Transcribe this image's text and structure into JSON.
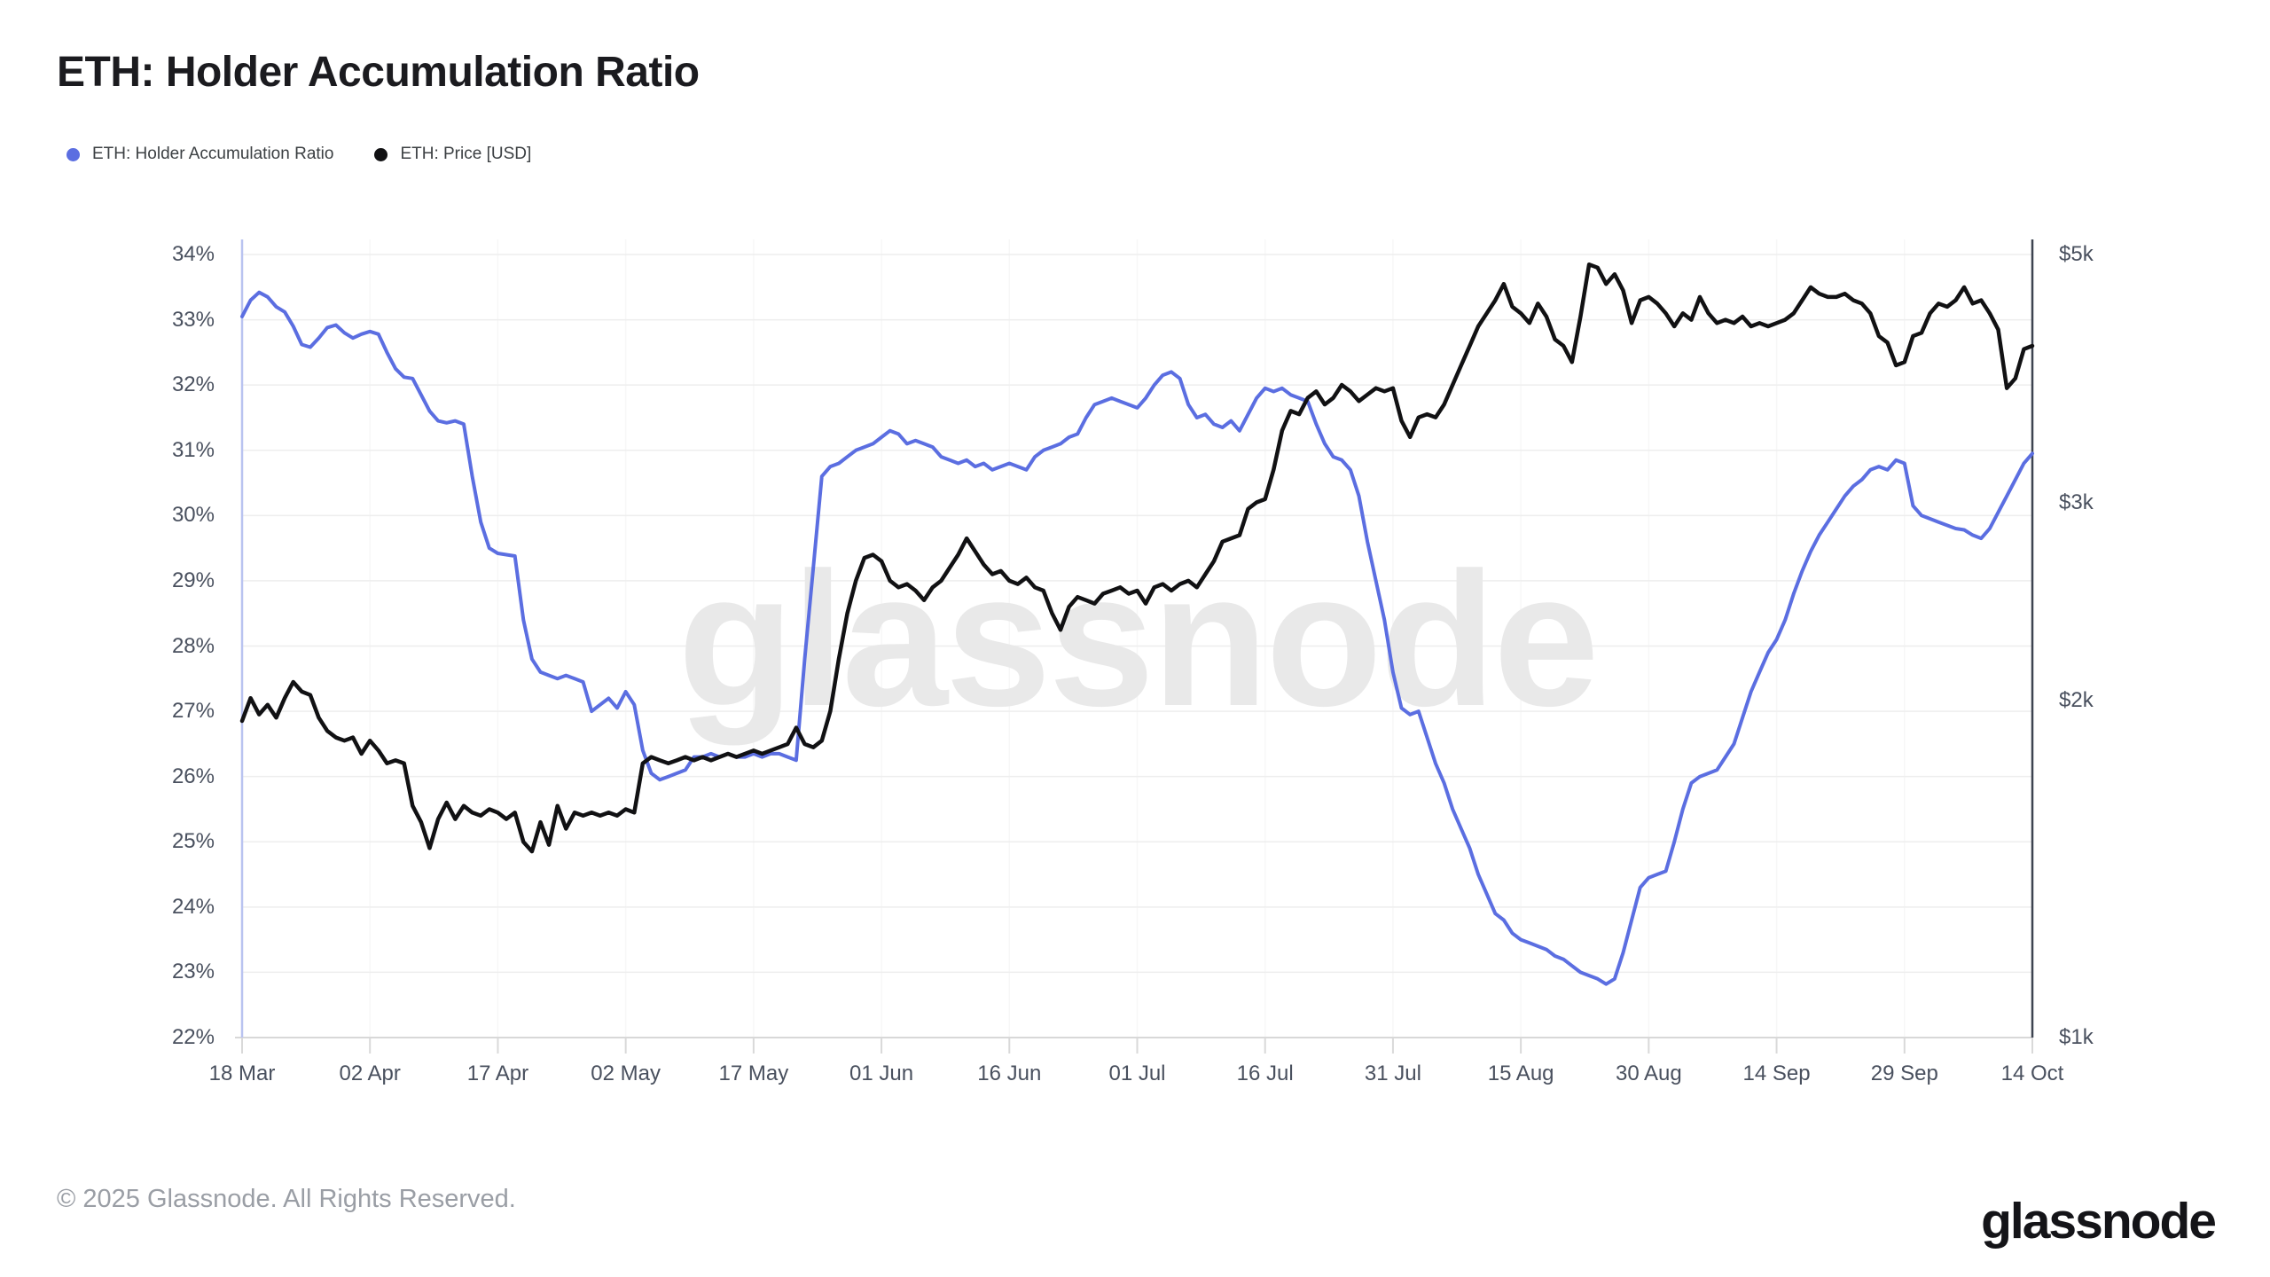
{
  "chart_data": {
    "type": "line",
    "title": "ETH: Holder Accumulation Ratio",
    "watermark": "glassnode",
    "grid": "horizontal",
    "legend_position": "top-left",
    "x_axis": {
      "tick_labels": [
        "18 Mar",
        "02 Apr",
        "17 Apr",
        "02 May",
        "17 May",
        "01 Jun",
        "16 Jun",
        "01 Jul",
        "16 Jul",
        "31 Jul",
        "15 Aug",
        "30 Aug",
        "14 Sep",
        "29 Sep",
        "14 Oct"
      ]
    },
    "left_axis": {
      "unit": "%",
      "min": 22,
      "max": 34,
      "tick_labels": [
        "34%",
        "33%",
        "32%",
        "31%",
        "30%",
        "29%",
        "28%",
        "27%",
        "26%",
        "25%",
        "24%",
        "23%",
        "22%"
      ],
      "axis_color": "#b9c3f0"
    },
    "right_axis": {
      "unit": "USD",
      "scale": "log",
      "min": 1000,
      "max": 5000,
      "tick_labels": [
        "$5k",
        "$3k",
        "$2k",
        "$1k"
      ],
      "tick_values": [
        5000,
        3000,
        2000,
        1000
      ],
      "axis_color": "#3d4350"
    },
    "series": [
      {
        "name": "ETH: Holder Accumulation Ratio",
        "color": "#5B6EE1",
        "axis": "left",
        "unit": "%",
        "values": [
          33.05,
          33.3,
          33.42,
          33.35,
          33.2,
          33.12,
          32.9,
          32.62,
          32.58,
          32.72,
          32.88,
          32.92,
          32.8,
          32.72,
          32.78,
          32.82,
          32.78,
          32.5,
          32.25,
          32.12,
          32.1,
          31.85,
          31.6,
          31.45,
          31.42,
          31.45,
          31.4,
          30.6,
          29.9,
          29.5,
          29.42,
          29.4,
          29.38,
          28.4,
          27.8,
          27.6,
          27.55,
          27.5,
          27.55,
          27.5,
          27.45,
          27.0,
          27.1,
          27.2,
          27.05,
          27.3,
          27.1,
          26.4,
          26.05,
          25.95,
          26.0,
          26.05,
          26.1,
          26.3,
          26.3,
          26.35,
          26.3,
          26.35,
          26.3,
          26.3,
          26.35,
          26.3,
          26.35,
          26.35,
          26.3,
          26.25,
          27.8,
          29.2,
          30.6,
          30.75,
          30.8,
          30.9,
          31.0,
          31.05,
          31.1,
          31.2,
          31.3,
          31.25,
          31.1,
          31.15,
          31.1,
          31.05,
          30.9,
          30.85,
          30.8,
          30.85,
          30.75,
          30.8,
          30.7,
          30.75,
          30.8,
          30.75,
          30.7,
          30.9,
          31.0,
          31.05,
          31.1,
          31.2,
          31.25,
          31.5,
          31.7,
          31.75,
          31.8,
          31.75,
          31.7,
          31.65,
          31.8,
          32.0,
          32.15,
          32.2,
          32.1,
          31.7,
          31.5,
          31.55,
          31.4,
          31.35,
          31.45,
          31.3,
          31.55,
          31.8,
          31.95,
          31.9,
          31.95,
          31.85,
          31.8,
          31.75,
          31.4,
          31.1,
          30.9,
          30.85,
          30.7,
          30.3,
          29.6,
          29.0,
          28.4,
          27.6,
          27.05,
          26.95,
          27.0,
          26.6,
          26.2,
          25.9,
          25.5,
          25.2,
          24.9,
          24.5,
          24.2,
          23.9,
          23.8,
          23.6,
          23.5,
          23.45,
          23.4,
          23.35,
          23.25,
          23.2,
          23.1,
          23.0,
          22.95,
          22.9,
          22.82,
          22.9,
          23.3,
          23.8,
          24.3,
          24.45,
          24.5,
          24.55,
          25.0,
          25.5,
          25.9,
          26.0,
          26.05,
          26.1,
          26.3,
          26.5,
          26.9,
          27.3,
          27.6,
          27.9,
          28.1,
          28.4,
          28.8,
          29.15,
          29.45,
          29.7,
          29.9,
          30.1,
          30.3,
          30.45,
          30.55,
          30.7,
          30.75,
          30.7,
          30.85,
          30.8,
          30.15,
          30.0,
          29.95,
          29.9,
          29.85,
          29.8,
          29.78,
          29.7,
          29.65,
          29.8,
          30.05,
          30.3,
          30.55,
          30.8,
          30.95
        ]
      },
      {
        "name": "ETH: Price [USD]",
        "color": "#111113",
        "axis": "right",
        "unit": "USD",
        "values": [
          1917,
          2009,
          1943,
          1982,
          1930,
          2009,
          2077,
          2036,
          2022,
          1930,
          1878,
          1853,
          1841,
          1853,
          1792,
          1841,
          1804,
          1757,
          1768,
          1757,
          1610,
          1557,
          1476,
          1567,
          1621,
          1567,
          1610,
          1588,
          1578,
          1599,
          1588,
          1567,
          1588,
          1495,
          1466,
          1557,
          1486,
          1610,
          1536,
          1588,
          1578,
          1588,
          1578,
          1588,
          1578,
          1599,
          1588,
          1757,
          1780,
          1768,
          1757,
          1768,
          1780,
          1768,
          1780,
          1768,
          1780,
          1792,
          1780,
          1792,
          1804,
          1792,
          1804,
          1816,
          1828,
          1891,
          1828,
          1816,
          1841,
          1956,
          2178,
          2392,
          2557,
          2680,
          2698,
          2662,
          2557,
          2523,
          2540,
          2506,
          2457,
          2523,
          2557,
          2627,
          2698,
          2790,
          2716,
          2644,
          2592,
          2609,
          2557,
          2540,
          2574,
          2523,
          2506,
          2392,
          2312,
          2424,
          2473,
          2457,
          2440,
          2490,
          2506,
          2523,
          2490,
          2506,
          2440,
          2523,
          2540,
          2506,
          2540,
          2557,
          2523,
          2592,
          2662,
          2771,
          2790,
          2808,
          2964,
          3004,
          3024,
          3213,
          3482,
          3625,
          3601,
          3724,
          3774,
          3674,
          3724,
          3825,
          3774,
          3699,
          3749,
          3799,
          3774,
          3799,
          3553,
          3436,
          3577,
          3601,
          3577,
          3674,
          3825,
          3981,
          4144,
          4314,
          4431,
          4551,
          4706,
          4491,
          4431,
          4343,
          4521,
          4401,
          4200,
          4144,
          4008,
          4401,
          4899,
          4867,
          4706,
          4802,
          4644,
          4343,
          4551,
          4582,
          4521,
          4431,
          4314,
          4431,
          4372,
          4582,
          4431,
          4343,
          4372,
          4343,
          4401,
          4314,
          4343,
          4314,
          4343,
          4372,
          4431,
          4551,
          4675,
          4613,
          4582,
          4582,
          4613,
          4551,
          4521,
          4431,
          4228,
          4172,
          3981,
          4008,
          4228,
          4257,
          4431,
          4521,
          4491,
          4551,
          4675,
          4521,
          4551,
          4431,
          4285,
          3799,
          3876,
          4116,
          4144
        ]
      }
    ],
    "style": {
      "grid_color": "#eeeeee",
      "axis_bottom_color": "#d8d8d8",
      "watermark_color": "#e9e9e9",
      "tick_text_color": "#49505e"
    }
  },
  "footer": {
    "copyright": "© 2025 Glassnode. All Rights Reserved.",
    "logo_text": "glassnode"
  }
}
